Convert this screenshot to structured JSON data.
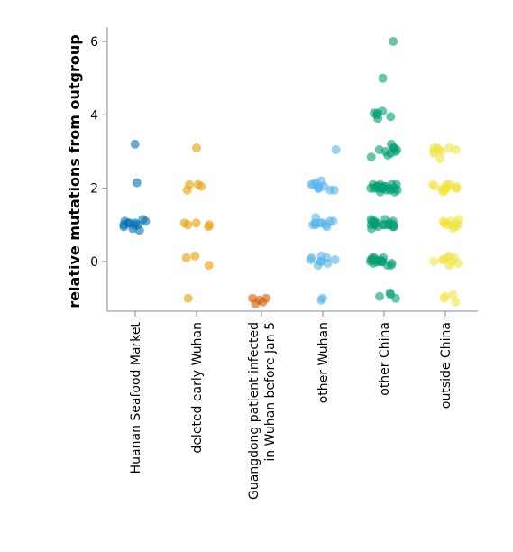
{
  "chart_data": {
    "type": "scatter",
    "title": "",
    "xlabel": "",
    "ylabel": "relative mutations from outgroup",
    "ylim": [
      -1.2,
      6.2
    ],
    "yticks": [
      0,
      2,
      4,
      6
    ],
    "grid": false,
    "legend": "none",
    "categories": [
      "Huanan Seafood Market",
      "deleted early Wuhan",
      "Guangdong patient infected in Wuhan before Jan 5",
      "other Wuhan",
      "other China",
      "outside China"
    ],
    "category_lines": [
      [
        "Huanan Seafood Market"
      ],
      [
        "deleted early Wuhan"
      ],
      [
        "Guangdong patient infected",
        "in Wuhan before Jan 5"
      ],
      [
        "other Wuhan"
      ],
      [
        "other China"
      ],
      [
        "outside China"
      ]
    ],
    "colors": [
      "#0072B2",
      "#E69F00",
      "#D55E00",
      "#56B4E9",
      "#009E73",
      "#F0E442"
    ],
    "series": [
      {
        "values": [
          3.2,
          2.15,
          1.1,
          1.05,
          1.0,
          1.05,
          0.95,
          1.1,
          1.0,
          0.9,
          1.05,
          1.15,
          0.85,
          1.0
        ]
      },
      {
        "values": [
          3.1,
          2.1,
          2.05,
          1.95,
          2.1,
          1.05,
          1.0,
          1.05,
          0.95,
          1.0,
          0.1,
          0.15,
          -0.1,
          -1.0
        ]
      },
      {
        "values": [
          -1.05,
          -1.1,
          -1.0,
          -1.15,
          -1.0
        ]
      },
      {
        "values": [
          3.05,
          2.2,
          2.15,
          2.05,
          2.0,
          2.1,
          1.95,
          2.0,
          2.05,
          2.1,
          1.95,
          1.2,
          1.1,
          1.05,
          1.0,
          1.0,
          1.05,
          1.1,
          0.95,
          1.0,
          1.05,
          0.15,
          0.1,
          0.05,
          0.0,
          -0.05,
          0.1,
          0.05,
          -0.1,
          0.0,
          -1.0,
          -1.05
        ]
      },
      {
        "values": [
          6.0,
          5.0,
          4.1,
          4.05,
          4.0,
          3.95,
          4.05,
          3.9,
          3.2,
          3.1,
          3.05,
          3.0,
          3.1,
          2.95,
          2.9,
          3.0,
          2.85,
          3.05,
          2.1,
          2.05,
          2.0,
          2.0,
          1.95,
          2.05,
          2.1,
          2.0,
          1.9,
          2.05,
          2.0,
          2.1,
          1.95,
          2.0,
          2.0,
          1.95,
          2.05,
          2.0,
          2.1,
          1.9,
          2.0,
          1.15,
          1.1,
          1.05,
          1.0,
          1.0,
          0.95,
          1.05,
          1.1,
          1.0,
          0.9,
          1.05,
          1.0,
          1.15,
          0.95,
          1.0,
          1.05,
          1.0,
          1.1,
          0.95,
          1.0,
          0.1,
          0.05,
          0.0,
          0.0,
          -0.05,
          0.1,
          0.05,
          0.0,
          -0.1,
          0.05,
          0.0,
          -0.05,
          0.1,
          0.0,
          0.05,
          -0.1,
          0.0,
          -0.9,
          -0.95,
          -1.0,
          -0.85
        ]
      },
      {
        "values": [
          3.1,
          3.05,
          3.0,
          3.1,
          3.05,
          2.95,
          3.0,
          3.1,
          2.8,
          2.1,
          2.05,
          2.0,
          1.95,
          2.1,
          2.05,
          2.0,
          1.9,
          2.05,
          2.0,
          2.1,
          1.95,
          2.0,
          1.1,
          1.05,
          1.0,
          0.95,
          1.1,
          1.05,
          1.0,
          0.9,
          1.05,
          1.0,
          1.15,
          0.15,
          0.1,
          0.05,
          0.0,
          -0.05,
          0.1,
          -0.1,
          0.05,
          0.0,
          -0.9,
          -0.95,
          -1.0,
          -1.1
        ]
      }
    ]
  }
}
